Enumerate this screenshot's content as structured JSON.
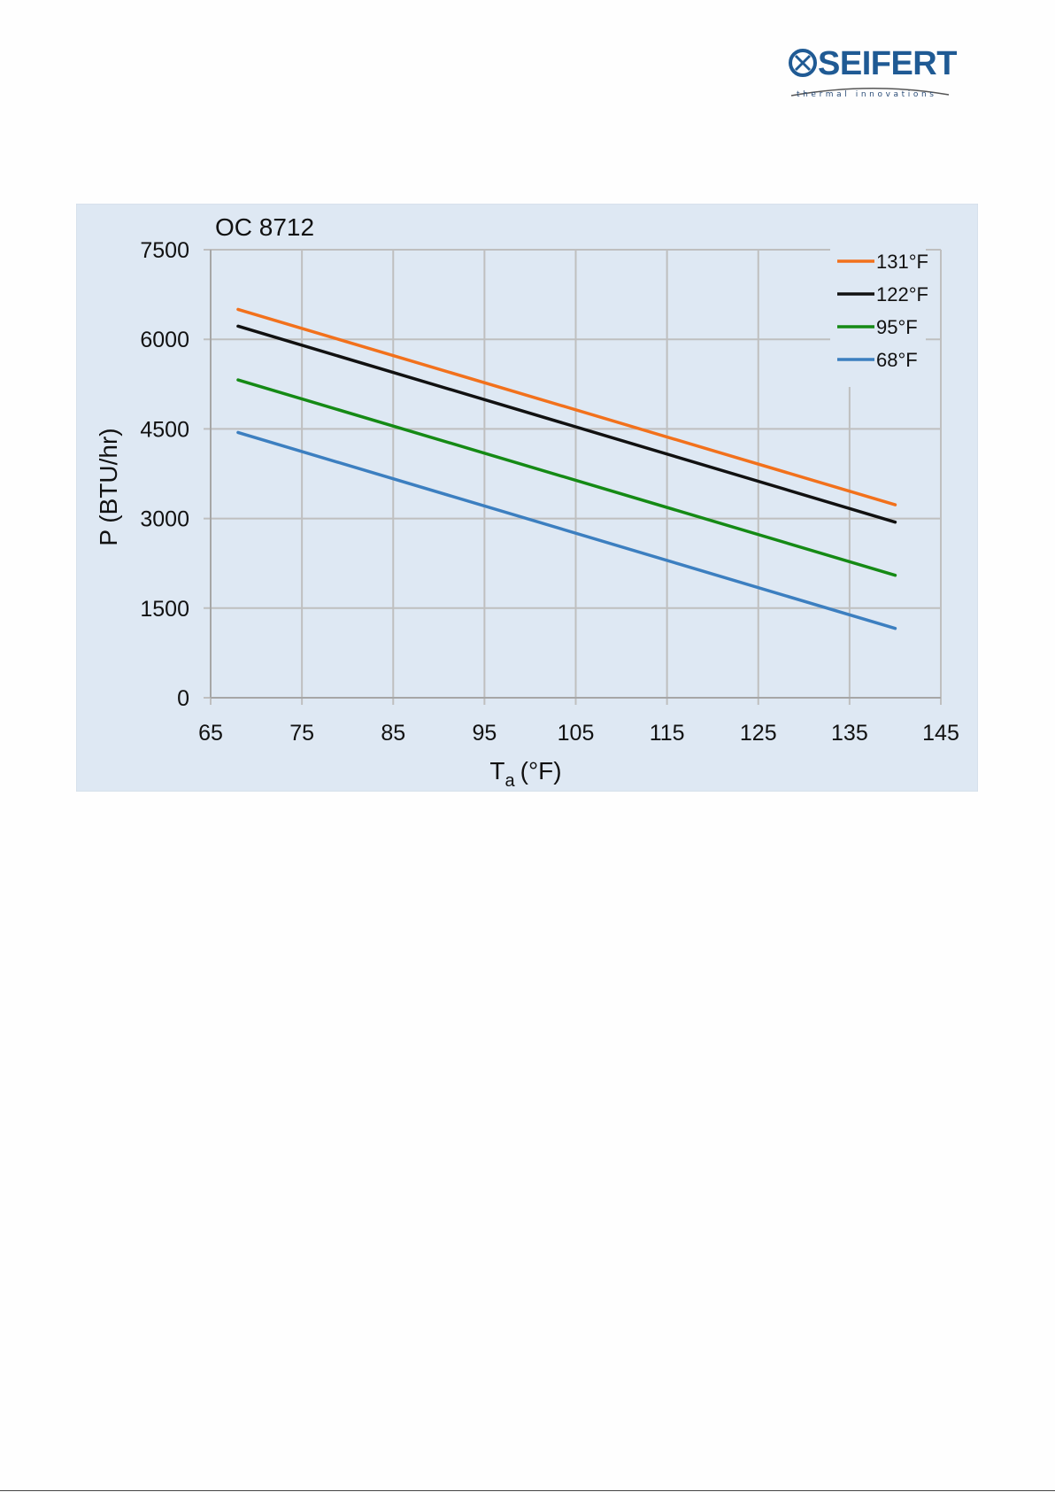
{
  "brand": {
    "name": "SEIFERT",
    "tagline": "thermal innovations",
    "color": "#1f5a94"
  },
  "chart_data": {
    "type": "line",
    "title": "OC 8712",
    "xlabel_main": "T",
    "xlabel_sub": "a",
    "xlabel_unit": "(°F)",
    "ylabel": "P (BTU/hr)",
    "xlim": [
      65,
      145
    ],
    "ylim": [
      0,
      7500
    ],
    "xticks": [
      65,
      75,
      85,
      95,
      105,
      115,
      125,
      135,
      145
    ],
    "yticks": [
      0,
      1500,
      3000,
      4500,
      6000,
      7500
    ],
    "grid": true,
    "legend_position": "top-right",
    "background": "#dee8f3",
    "series": [
      {
        "name": "131°F",
        "color": "#f2711c",
        "x": [
          68,
          140
        ],
        "y": [
          6500,
          3230
        ]
      },
      {
        "name": "122°F",
        "color": "#111111",
        "x": [
          68,
          140
        ],
        "y": [
          6220,
          2940
        ]
      },
      {
        "name": "95°F",
        "color": "#158a15",
        "x": [
          68,
          140
        ],
        "y": [
          5320,
          2050
        ]
      },
      {
        "name": "68°F",
        "color": "#3c7fc0",
        "x": [
          68,
          140
        ],
        "y": [
          4440,
          1160
        ]
      }
    ]
  }
}
